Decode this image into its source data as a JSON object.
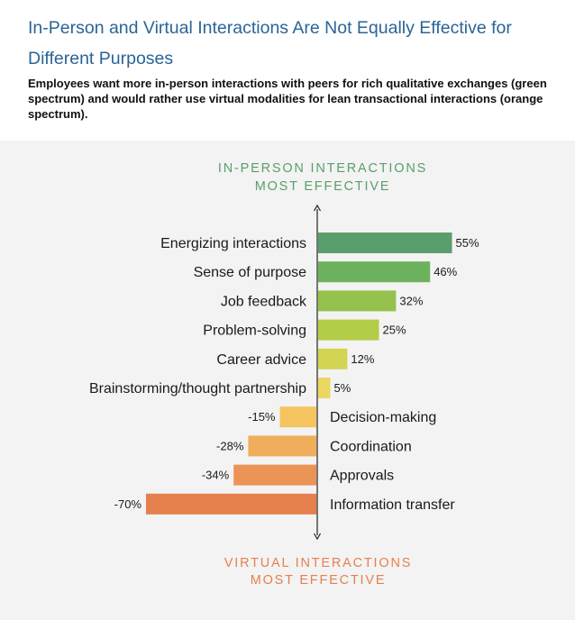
{
  "header": {
    "title": "In-Person and Virtual Interactions Are Not Equally Effective for Different Purposes",
    "subtitle": "Employees want more in-person interactions with peers for rich qualitative exchanges (green spectrum) and would rather use virtual modalities for lean transactional interactions (orange spectrum)."
  },
  "chart_data": {
    "type": "bar",
    "orientation": "horizontal-diverging",
    "top_label": [
      "IN-PERSON INTERACTIONS",
      "MOST EFFECTIVE"
    ],
    "bottom_label": [
      "VIRTUAL INTERACTIONS",
      "MOST EFFECTIVE"
    ],
    "categories": [
      "Energizing interactions",
      "Sense of purpose",
      "Job feedback",
      "Problem-solving",
      "Career advice",
      "Brainstorming/thought partnership",
      "Decision-making",
      "Coordination",
      "Approvals",
      "Information transfer"
    ],
    "values": [
      55,
      46,
      32,
      25,
      12,
      5,
      -15,
      -28,
      -34,
      -70
    ],
    "value_labels": [
      "55%",
      "46%",
      "32%",
      "25%",
      "12%",
      "5%",
      "-15%",
      "-28%",
      "-34%",
      "-70%"
    ],
    "colors": [
      "#5a9e6b",
      "#6cb25c",
      "#94c24c",
      "#b2cc48",
      "#d3d454",
      "#ebd860",
      "#f4c45f",
      "#f0ae5c",
      "#eb9456",
      "#e6804f"
    ],
    "top_label_color": "#5a9e6b",
    "bottom_label_color": "#e6804f",
    "xlim": [
      -70,
      55
    ],
    "grid": false
  }
}
